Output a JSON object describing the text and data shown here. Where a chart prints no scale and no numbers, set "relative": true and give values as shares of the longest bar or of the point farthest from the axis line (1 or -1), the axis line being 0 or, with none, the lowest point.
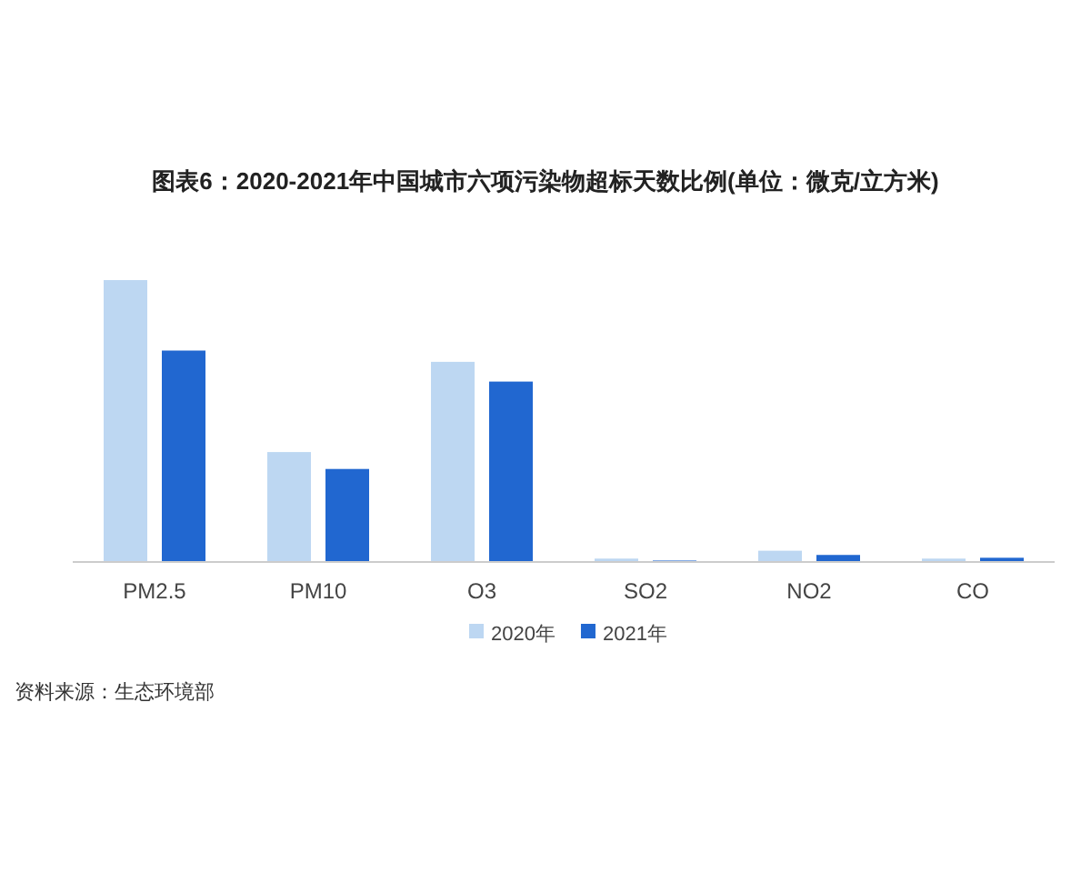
{
  "chart_data": {
    "type": "bar",
    "title": "图表6：2020-2021年中国城市六项污染物超标天数比例(单位：微克/立方米)",
    "categories": [
      "PM2.5",
      "PM10",
      "O3",
      "SO2",
      "NO2",
      "CO"
    ],
    "relative": true,
    "series": [
      {
        "name": "2020年",
        "color": "#bdd7f2",
        "values": [
          1,
          0.39,
          0.71,
          0.012,
          0.04,
          0.012
        ]
      },
      {
        "name": "2021年",
        "color": "#2167d0",
        "values": [
          0.75,
          0.33,
          0.64,
          0.005,
          0.025,
          0.015
        ]
      }
    ],
    "legend": "bottom",
    "annotations": [
      "资料来源：生态环境部"
    ]
  }
}
